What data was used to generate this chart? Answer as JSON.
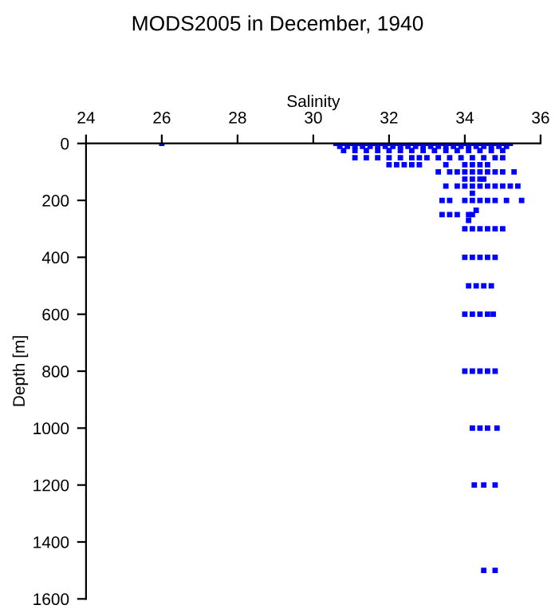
{
  "chart_data": {
    "type": "scatter",
    "title": "MODS2005 in December, 1940",
    "xlabel": "Salinity",
    "ylabel": "Depth [m]",
    "xlim": [
      24,
      36
    ],
    "xticks": [
      24,
      26,
      28,
      30,
      32,
      34,
      36
    ],
    "ylim": [
      1600,
      0
    ],
    "yticks": [
      0,
      200,
      400,
      600,
      800,
      1000,
      1200,
      1400,
      1600
    ],
    "grid": false,
    "marker": "square",
    "series": [
      {
        "color": "#0000ff",
        "x": [
          26,
          30.6,
          30.8,
          31.0,
          31.2,
          31.4,
          31.6,
          31.8,
          32.0,
          32.2,
          32.4,
          32.6,
          32.8,
          33.0,
          33.2,
          33.4,
          33.6,
          33.8,
          34.0,
          34.2,
          34.4,
          34.6,
          34.8,
          35.0,
          35.2
        ],
        "values": [
          0,
          0,
          0,
          0,
          0,
          0,
          0,
          0,
          0,
          0,
          0,
          0,
          0,
          0,
          0,
          0,
          0,
          0,
          0,
          0,
          0,
          0,
          0,
          0,
          0
        ]
      },
      {
        "color": "#0000ff",
        "x": [
          30.7,
          30.9,
          31.1,
          31.3,
          31.5,
          31.7,
          31.9,
          32.1,
          32.3,
          32.5,
          32.7,
          32.9,
          33.1,
          33.3,
          33.5,
          33.7,
          33.9,
          34.1,
          34.3,
          34.5,
          34.7,
          34.9,
          35.1
        ],
        "values": [
          10,
          10,
          10,
          10,
          10,
          10,
          10,
          10,
          10,
          10,
          10,
          10,
          10,
          10,
          10,
          10,
          10,
          10,
          10,
          10,
          10,
          10,
          10
        ]
      },
      {
        "color": "#0000ff",
        "x": [
          30.8,
          31.1,
          31.4,
          31.7,
          32.0,
          32.3,
          32.6,
          32.9,
          33.2,
          33.5,
          33.8,
          34.1,
          34.4,
          34.7,
          35.0
        ],
        "values": [
          25,
          25,
          25,
          25,
          25,
          25,
          25,
          25,
          25,
          25,
          25,
          25,
          25,
          25,
          25
        ]
      },
      {
        "color": "#0000ff",
        "x": [
          31.1,
          31.4,
          31.7,
          32.0,
          32.3,
          32.6,
          32.8,
          33.0,
          33.3,
          33.6,
          33.9,
          34.2,
          34.5,
          34.8,
          35.0
        ],
        "values": [
          50,
          50,
          50,
          50,
          50,
          50,
          50,
          50,
          50,
          50,
          50,
          50,
          50,
          50,
          50
        ]
      },
      {
        "color": "#0000ff",
        "x": [
          32.0,
          32.2,
          32.4,
          32.6,
          32.8,
          33.5,
          34.0,
          34.2,
          34.4,
          34.6
        ],
        "values": [
          75,
          75,
          75,
          75,
          75,
          75,
          75,
          75,
          75,
          75
        ]
      },
      {
        "color": "#0000ff",
        "x": [
          33.3,
          33.6,
          33.8,
          34.0,
          34.2,
          34.4,
          34.6,
          34.8,
          35.0,
          35.3
        ],
        "values": [
          100,
          100,
          100,
          100,
          100,
          100,
          100,
          100,
          100,
          100
        ]
      },
      {
        "color": "#0000ff",
        "x": [
          34.0,
          34.2,
          34.4,
          34.5
        ],
        "values": [
          125,
          125,
          125,
          125
        ]
      },
      {
        "color": "#0000ff",
        "x": [
          33.5,
          33.8,
          34.0,
          34.2,
          34.4,
          34.6,
          34.8,
          35.0,
          35.2,
          35.4,
          34.2
        ],
        "values": [
          150,
          150,
          150,
          150,
          150,
          150,
          150,
          150,
          150,
          150,
          175
        ]
      },
      {
        "color": "#0000ff",
        "x": [
          33.4,
          33.6,
          34.0,
          34.2,
          34.4,
          34.6,
          34.8,
          35.1,
          35.5,
          34.3
        ],
        "values": [
          200,
          200,
          200,
          200,
          200,
          200,
          200,
          200,
          200,
          235
        ]
      },
      {
        "color": "#0000ff",
        "x": [
          33.4,
          33.6,
          33.8,
          34.1,
          34.2,
          34.1
        ],
        "values": [
          250,
          250,
          250,
          250,
          250,
          270
        ]
      },
      {
        "color": "#0000ff",
        "x": [
          34.0,
          34.2,
          34.4,
          34.6,
          34.8,
          35.0
        ],
        "values": [
          300,
          300,
          300,
          300,
          300,
          300
        ]
      },
      {
        "color": "#0000ff",
        "x": [
          34.0,
          34.2,
          34.4,
          34.6,
          34.8
        ],
        "values": [
          400,
          400,
          400,
          400,
          400
        ]
      },
      {
        "color": "#0000ff",
        "x": [
          34.1,
          34.3,
          34.5,
          34.7
        ],
        "values": [
          500,
          500,
          500,
          500
        ]
      },
      {
        "color": "#0000ff",
        "x": [
          34.0,
          34.2,
          34.4,
          34.6,
          34.75
        ],
        "values": [
          600,
          600,
          600,
          600,
          600
        ]
      },
      {
        "color": "#0000ff",
        "x": [
          34.0,
          34.2,
          34.4,
          34.6,
          34.8
        ],
        "values": [
          800,
          800,
          800,
          800,
          800
        ]
      },
      {
        "color": "#0000ff",
        "x": [
          34.2,
          34.4,
          34.6,
          34.85
        ],
        "values": [
          1000,
          1000,
          1000,
          1000
        ]
      },
      {
        "color": "#0000ff",
        "x": [
          34.25,
          34.5,
          34.8
        ],
        "values": [
          1200,
          1200,
          1200
        ]
      },
      {
        "color": "#0000ff",
        "x": [
          34.5,
          34.8
        ],
        "values": [
          1500,
          1500
        ]
      }
    ]
  }
}
